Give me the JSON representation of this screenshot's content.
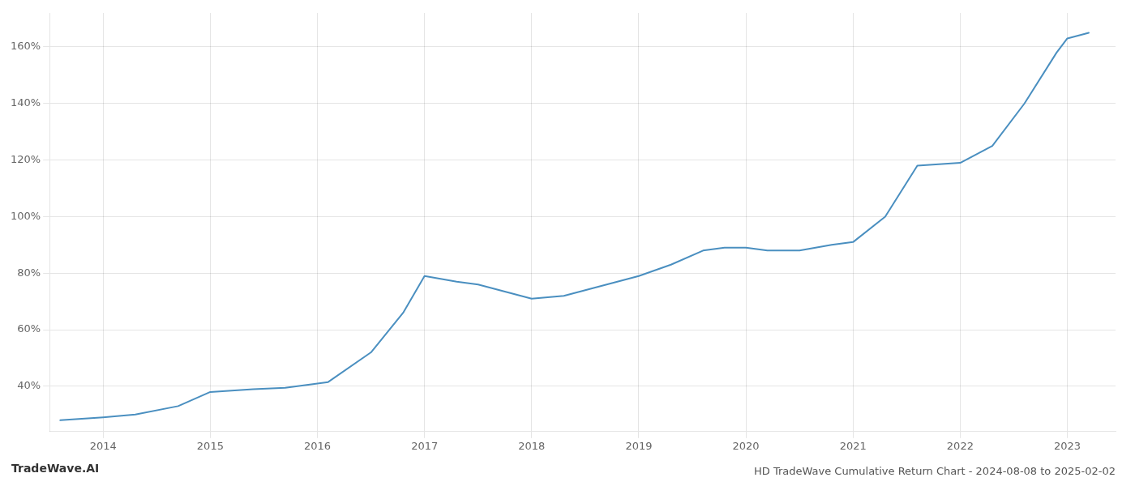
{
  "chart_data": {
    "type": "line",
    "title": "HD TradeWave Cumulative Return Chart - 2024-08-08 to 2025-02-02",
    "annotations": [
      "TradeWave.AI"
    ],
    "x": [
      2013.6,
      2014.0,
      2014.3,
      2014.7,
      2015.0,
      2015.4,
      2015.7,
      2016.0,
      2016.1,
      2016.5,
      2016.8,
      2017.0,
      2017.3,
      2017.5,
      2017.8,
      2018.0,
      2018.3,
      2018.5,
      2018.8,
      2019.0,
      2019.3,
      2019.6,
      2019.8,
      2020.0,
      2020.2,
      2020.5,
      2020.8,
      2021.0,
      2021.3,
      2021.6,
      2022.0,
      2022.3,
      2022.6,
      2022.9,
      2023.0,
      2023.2
    ],
    "values": [
      28,
      29,
      30,
      33,
      38,
      39,
      39.5,
      41,
      41.5,
      52,
      66,
      79,
      77,
      76,
      73,
      71,
      72,
      74,
      77,
      79,
      83,
      88,
      89,
      89,
      88,
      88,
      90,
      91,
      100,
      118,
      119,
      125,
      140,
      158,
      163,
      165
    ],
    "color": "#4a8fc0",
    "xlim": [
      2013.5,
      2023.45
    ],
    "xticks": [
      2014,
      2015,
      2016,
      2017,
      2018,
      2019,
      2020,
      2021,
      2022,
      2023
    ],
    "ylim": [
      24,
      172
    ],
    "yticks": [
      {
        "value": 40,
        "label": "40%"
      },
      {
        "value": 60,
        "label": "60%"
      },
      {
        "value": 80,
        "label": "80%"
      },
      {
        "value": 100,
        "label": "100%"
      },
      {
        "value": 120,
        "label": "120%"
      },
      {
        "value": 140,
        "label": "140%"
      },
      {
        "value": 160,
        "label": "160%"
      }
    ],
    "grid": true
  }
}
